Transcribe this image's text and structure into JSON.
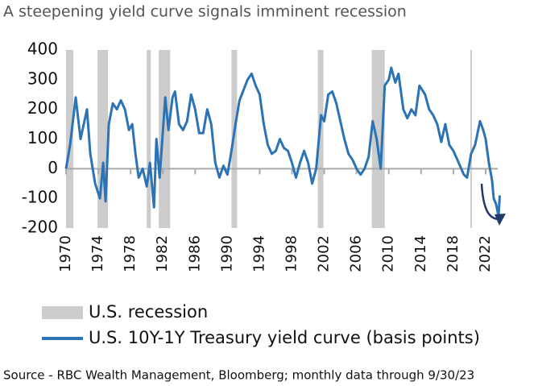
{
  "chart_data": {
    "type": "line",
    "title": "A steepening yield curve signals imminent recession",
    "source": "Source - RBC Wealth Management, Bloomberg; monthly data through 9/30/23",
    "x": [
      1970.0,
      1970.5,
      1971.2,
      1971.8,
      1972.2,
      1972.6,
      1973.0,
      1973.6,
      1974.2,
      1974.6,
      1974.9,
      1975.3,
      1975.8,
      1976.3,
      1976.8,
      1977.3,
      1977.8,
      1978.2,
      1978.6,
      1979.0,
      1979.5,
      1980.0,
      1980.4,
      1980.9,
      1981.2,
      1981.6,
      1982.3,
      1982.7,
      1983.2,
      1983.5,
      1984.0,
      1984.5,
      1985.0,
      1985.5,
      1986.0,
      1986.5,
      1987.0,
      1987.5,
      1988.0,
      1988.5,
      1989.0,
      1989.5,
      1990.0,
      1990.5,
      1991.0,
      1991.5,
      1992.5,
      1993.0,
      1993.5,
      1994.0,
      1994.5,
      1995.0,
      1995.5,
      1996.0,
      1996.5,
      1997.0,
      1997.5,
      1998.0,
      1998.5,
      1999.0,
      1999.5,
      2000.0,
      2000.5,
      2001.0,
      2001.6,
      2002.0,
      2002.5,
      2003.0,
      2003.5,
      2004.0,
      2004.5,
      2005.0,
      2005.5,
      2006.0,
      2006.5,
      2007.0,
      2007.5,
      2008.0,
      2008.5,
      2009.0,
      2009.5,
      2010.0,
      2010.3,
      2010.8,
      2011.2,
      2011.8,
      2012.3,
      2012.8,
      2013.3,
      2013.8,
      2014.5,
      2015.0,
      2015.5,
      2016.0,
      2016.5,
      2017.0,
      2017.5,
      2018.0,
      2018.5,
      2019.3,
      2019.7,
      2020.2,
      2020.7,
      2021.3,
      2021.7,
      2022.0,
      2022.4,
      2022.8,
      2023.0,
      2023.3,
      2023.6,
      2023.75
    ],
    "series": [
      {
        "name": "U.S. 10Y-1Y Treasury yield curve (basis points)",
        "color": "#2b73b5",
        "values": [
          0,
          80,
          240,
          100,
          150,
          200,
          50,
          -50,
          -100,
          20,
          -110,
          150,
          220,
          200,
          230,
          200,
          130,
          150,
          50,
          -30,
          0,
          -60,
          20,
          -130,
          100,
          -30,
          240,
          130,
          240,
          260,
          150,
          130,
          160,
          250,
          200,
          120,
          120,
          200,
          150,
          20,
          -30,
          10,
          -20,
          60,
          150,
          230,
          300,
          320,
          280,
          250,
          150,
          80,
          50,
          60,
          100,
          70,
          60,
          20,
          -30,
          20,
          60,
          20,
          -50,
          0,
          180,
          160,
          250,
          260,
          220,
          160,
          100,
          50,
          30,
          0,
          -20,
          0,
          40,
          160,
          100,
          0,
          280,
          300,
          340,
          290,
          320,
          200,
          170,
          200,
          180,
          280,
          250,
          200,
          180,
          150,
          90,
          150,
          80,
          60,
          30,
          -20,
          -30,
          50,
          80,
          160,
          130,
          100,
          20,
          -40,
          -100,
          -120,
          -160,
          -90
        ]
      }
    ],
    "recessions": {
      "name": "U.S. recession",
      "color": "#cccccc",
      "spans": [
        [
          1970.0,
          1970.9
        ],
        [
          1973.9,
          1975.2
        ],
        [
          1980.0,
          1980.5
        ],
        [
          1981.5,
          1982.9
        ],
        [
          1990.5,
          1991.2
        ],
        [
          2001.2,
          2001.9
        ],
        [
          2007.9,
          2009.5
        ],
        [
          2020.1,
          2020.3
        ]
      ]
    },
    "xlim": [
      1970,
      2023.5
    ],
    "ylim": [
      -200,
      400
    ],
    "xticks": [
      1970,
      1974,
      1978,
      1982,
      1986,
      1990,
      1994,
      1998,
      2002,
      2006,
      2010,
      2014,
      2018,
      2022
    ],
    "yticks": [
      -200,
      -100,
      0,
      100,
      200,
      300,
      400
    ]
  }
}
